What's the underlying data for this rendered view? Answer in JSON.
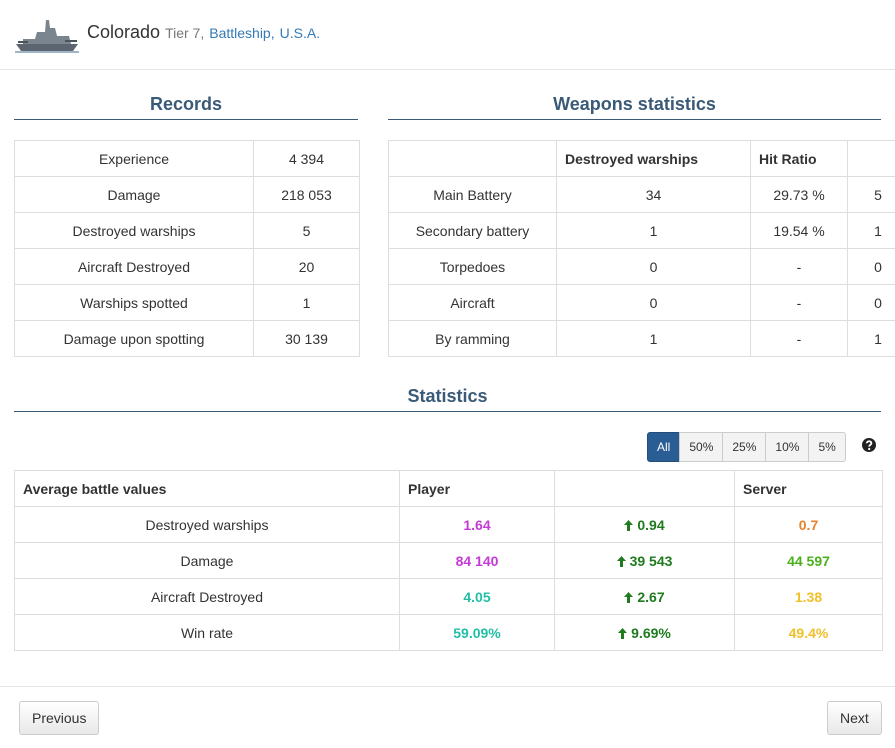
{
  "header": {
    "name": "Colorado",
    "tier": "Tier 7,",
    "class": "Battleship,",
    "nation": "U.S.A."
  },
  "records": {
    "title": "Records",
    "rows": [
      [
        "Experience",
        "4 394"
      ],
      [
        "Damage",
        "218 053"
      ],
      [
        "Destroyed warships",
        "5"
      ],
      [
        "Aircraft Destroyed",
        "20"
      ],
      [
        "Warships spotted",
        "1"
      ],
      [
        "Damage upon spotting",
        "30 139"
      ]
    ]
  },
  "weapons": {
    "title": "Weapons statistics",
    "columns": [
      "Destroyed warships",
      "Hit Ratio"
    ],
    "rows": [
      [
        "Main Battery",
        "34",
        "29.73 %",
        "5"
      ],
      [
        "Secondary battery",
        "1",
        "19.54 %",
        "1"
      ],
      [
        "Torpedoes",
        "0",
        "-",
        "0"
      ],
      [
        "Aircraft",
        "0",
        "-",
        "0"
      ],
      [
        "By ramming",
        "1",
        "-",
        "1"
      ]
    ]
  },
  "statistics": {
    "title": "Statistics",
    "filters": [
      "All",
      "50%",
      "25%",
      "10%",
      "5%"
    ],
    "active_filter": 0,
    "columns": [
      "Average battle values",
      "Player",
      "Server"
    ],
    "rows": [
      {
        "label": "Destroyed warships",
        "player": {
          "text": "1.64",
          "color": "#c43ad6"
        },
        "diff": "0.94",
        "server": {
          "text": "0.7",
          "color": "#e6822a"
        }
      },
      {
        "label": "Damage",
        "player": {
          "text": "84 140",
          "color": "#c43ad6"
        },
        "diff": "39 543",
        "server": {
          "text": "44 597",
          "color": "#4caf1c"
        }
      },
      {
        "label": "Aircraft Destroyed",
        "player": {
          "text": "4.05",
          "color": "#22bfa6"
        },
        "diff": "2.67",
        "server": {
          "text": "1.38",
          "color": "#f0c02a"
        }
      },
      {
        "label": "Win rate",
        "player": {
          "text": "59.09%",
          "color": "#22bfa6"
        },
        "diff": "9.69%",
        "server": {
          "text": "49.4%",
          "color": "#f0c02a"
        }
      }
    ]
  },
  "footer": {
    "previous": "Previous",
    "next": "Next"
  }
}
